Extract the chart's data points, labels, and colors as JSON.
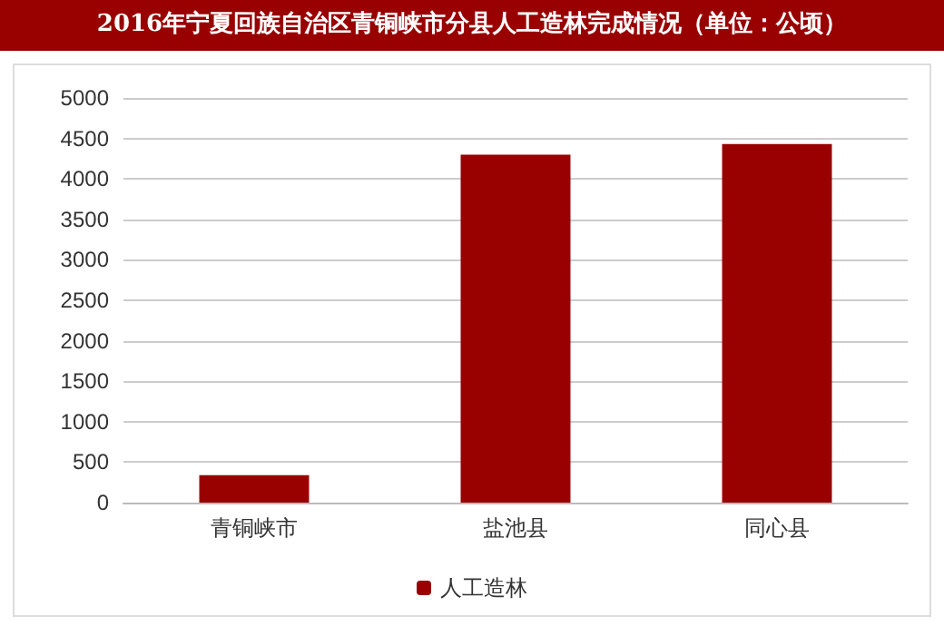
{
  "chart_data": {
    "type": "bar",
    "title": "2016年宁夏回族自治区青铜峡市分县人工造林完成情况（单位：公顷）",
    "categories": [
      "青铜峡市",
      "盐池县",
      "同心县"
    ],
    "series": [
      {
        "name": "人工造林",
        "color": "#990000",
        "values": [
          340,
          4300,
          4430
        ]
      }
    ],
    "ylim": [
      0,
      5000
    ],
    "yticks": [
      0,
      500,
      1000,
      1500,
      2000,
      2500,
      3000,
      3500,
      4000,
      4500,
      5000
    ],
    "grid": "y",
    "legend": "bottom"
  }
}
